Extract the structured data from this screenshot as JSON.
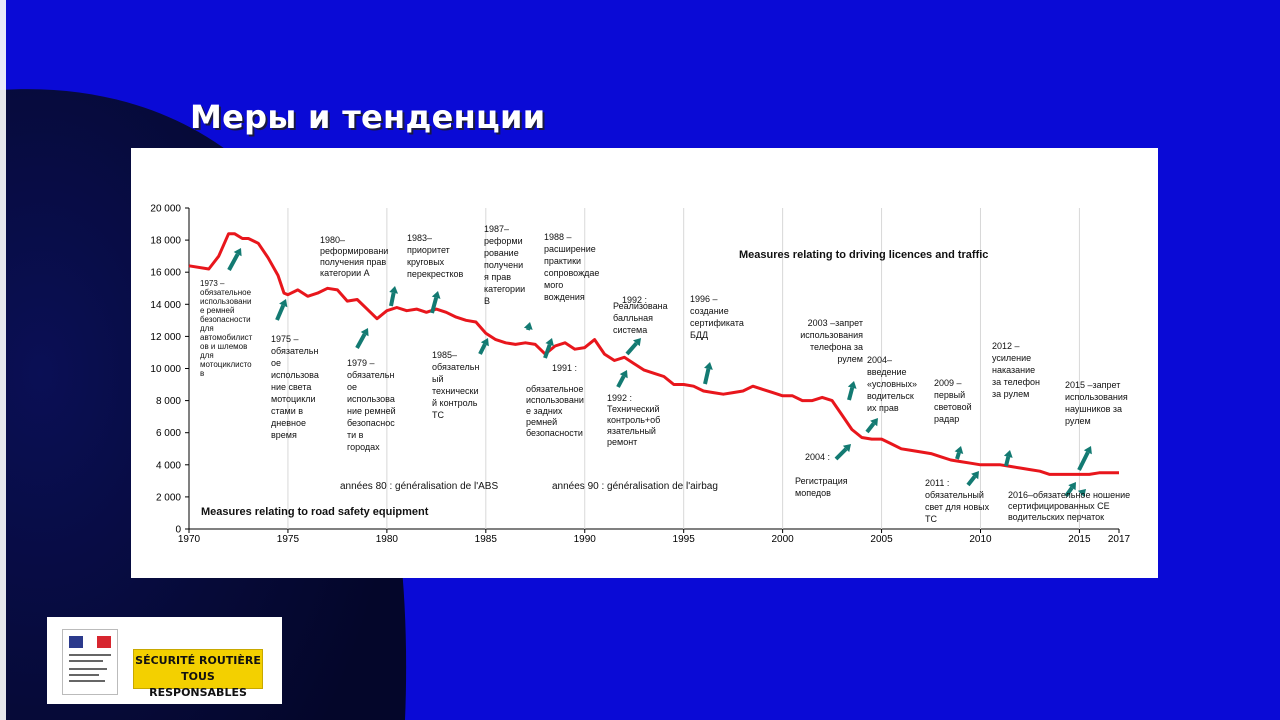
{
  "slide": {
    "title": "Меры и тенденции",
    "colors": {
      "background": "#0a0ad6",
      "dark": "#050830",
      "line": "#e8161c",
      "arrow": "#137a72"
    }
  },
  "chart_data": {
    "type": "line",
    "title": "",
    "xlabel": "",
    "ylabel": "",
    "xlim": [
      1970,
      2017
    ],
    "ylim": [
      0,
      20000
    ],
    "x_ticks": [
      "1970",
      "1975",
      "1980",
      "1985",
      "1990",
      "1995",
      "2000",
      "2005",
      "2010",
      "2015",
      "2017"
    ],
    "y_ticks": [
      "0",
      "2 000",
      "4 000",
      "6 000",
      "8 000",
      "10 000",
      "12 000",
      "14 000",
      "16 000",
      "18 000",
      "20 000"
    ],
    "grid": "vertical",
    "series": [
      {
        "color": "#e8161c",
        "x": [
          1970,
          1971,
          1971.5,
          1972,
          1972.3,
          1972.7,
          1973,
          1973.5,
          1974,
          1974.5,
          1974.8,
          1975,
          1975.5,
          1976,
          1976.5,
          1977,
          1977.5,
          1978,
          1978.5,
          1979,
          1979.5,
          1980,
          1980.5,
          1981,
          1981.5,
          1982,
          1982.5,
          1983,
          1983.5,
          1984,
          1984.5,
          1985,
          1985.5,
          1986,
          1986.5,
          1987,
          1987.5,
          1988,
          1988.5,
          1989,
          1989.5,
          1990,
          1990.5,
          1991,
          1991.5,
          1992,
          1992.5,
          1993,
          1993.5,
          1994,
          1994.5,
          1995,
          1995.5,
          1996,
          1996.5,
          1997,
          1997.5,
          1998,
          1998.5,
          1999,
          1999.5,
          2000,
          2000.5,
          2001,
          2001.5,
          2002,
          2002.5,
          2003,
          2003.5,
          2004,
          2004.5,
          2005,
          2005.5,
          2006,
          2006.5,
          2007,
          2007.5,
          2008,
          2008.5,
          2009,
          2009.5,
          2010,
          2010.5,
          2011,
          2011.5,
          2012,
          2012.5,
          2013,
          2013.5,
          2014,
          2014.5,
          2015,
          2015.5,
          2016,
          2016.5,
          2017
        ],
        "y": [
          16400,
          16200,
          17000,
          18400,
          18400,
          18100,
          18100,
          17800,
          16900,
          15800,
          14700,
          14600,
          14900,
          14500,
          14700,
          15000,
          14900,
          14200,
          14300,
          13700,
          13100,
          13600,
          13800,
          13600,
          13700,
          13500,
          13700,
          13500,
          13200,
          13000,
          12900,
          12200,
          11800,
          11600,
          11500,
          11600,
          11500,
          10900,
          11400,
          11600,
          11200,
          11300,
          11800,
          10900,
          10500,
          10700,
          10300,
          9900,
          9700,
          9500,
          9000,
          9000,
          8900,
          8600,
          8500,
          8400,
          8500,
          8600,
          8900,
          8700,
          8500,
          8300,
          8300,
          8000,
          8000,
          8200,
          8000,
          7100,
          6200,
          5700,
          5600,
          5600,
          5300,
          5000,
          4900,
          4800,
          4700,
          4500,
          4300,
          4200,
          4100,
          4000,
          4000,
          4000,
          3900,
          3800,
          3700,
          3600,
          3400,
          3400,
          3400,
          3400,
          3400,
          3500,
          3500,
          3500
        ]
      }
    ],
    "annotations": [
      {
        "text": "1973 –\nобязательное\nиспользовани\nе ремней\nбезопасности\nдля\nавтомобилист\nов и шлемов\nдля\nмотоциклисто\nв"
      },
      {
        "text": "1975 –\nобязательн\nое\nиспользова\nние света\nмотоцикли\nстами в\nдневное\nвремя"
      },
      {
        "text": "1980–\nреформировани\nполучения прав\nкатегории А"
      },
      {
        "text": "1979 –\nобязательн\nое\nиспользова\nние ремней\nбезопаснос\nти в\nгородах"
      },
      {
        "text": "1983–\nприоритет\nкруговых\nперекрестков"
      },
      {
        "text": "1985–\nобязательн\nый\nтехнически\nй контроль\nТС"
      },
      {
        "text": "1987–\nреформи\nрование\nполучени\nя прав\nкатегории\nB"
      },
      {
        "text": "1988 –\nрасширение\nпрактики\nсопровождае\nмого\nвождения"
      },
      {
        "text": "1991 :"
      },
      {
        "text": "обязательное\nиспользовани\nе задних\nремней\nбезопасности"
      },
      {
        "text": "1992 :"
      },
      {
        "text": "Реализована\nбалльная\nсистема"
      },
      {
        "text": "1992 :\nТехнический\nконтроль+об\nязательный\nремонт"
      },
      {
        "text": "1996 –\nсоздание\nсертификата\nБДД"
      },
      {
        "text": "2003 –запрет\nиспользования\nтелефона за\nрулем"
      },
      {
        "text": "2004–\nвведение\n«условных»\nводительск\nих прав"
      },
      {
        "text": "2004 :"
      },
      {
        "text": "Регистрация\nмопедов"
      },
      {
        "text": "2009 –\nпервый\nсветовой\nрадар"
      },
      {
        "text": "2011 :\nобязательный\nсвет для новых\nТС"
      },
      {
        "text": "2012 –\nусиление\nнаказание\nза телефон\nза рулем"
      },
      {
        "text": "2015 –запрет\nиспользования\nнаушников за\nрулем"
      },
      {
        "text": "2016–обязательное ношение\nсертифицированных СЕ\nводительских перчаток"
      },
      {
        "text": "Measures relating to driving licences and traffic"
      },
      {
        "text": "années 80 : généralisation de l'ABS"
      },
      {
        "text": "années 90 : généralisation de l'airbag"
      },
      {
        "text": "Measures relating to road safety equipment"
      }
    ]
  },
  "logo": {
    "line1": "SÉCURITÉ ROUTIÈRE",
    "line2": "TOUS RESPONSABLES",
    "yellow": "#f3d000"
  }
}
